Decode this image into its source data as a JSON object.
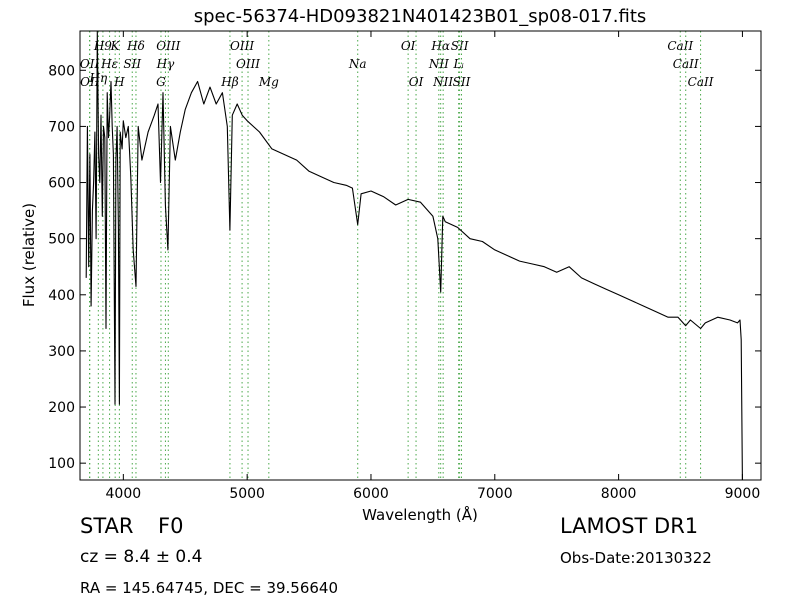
{
  "chart_data": {
    "type": "line",
    "title": "spec-56374-HD093821N401423B01_sp08-017.fits",
    "xlabel": "Wavelength (Å)",
    "ylabel": "Flux (relative)",
    "xlim": [
      3650,
      9150
    ],
    "ylim": [
      70,
      870
    ],
    "xticks": [
      4000,
      5000,
      6000,
      7000,
      8000,
      9000
    ],
    "yticks": [
      100,
      200,
      300,
      400,
      500,
      600,
      700,
      800
    ],
    "grid": false,
    "line_color": "#000000",
    "marker_color": "#4aa84a",
    "spectrum": {
      "x": [
        3700,
        3710,
        3720,
        3730,
        3740,
        3750,
        3760,
        3770,
        3780,
        3790,
        3800,
        3810,
        3820,
        3830,
        3840,
        3850,
        3860,
        3870,
        3880,
        3890,
        3900,
        3910,
        3920,
        3933,
        3940,
        3950,
        3960,
        3968,
        3975,
        3990,
        4000,
        4020,
        4040,
        4060,
        4080,
        4102,
        4120,
        4150,
        4200,
        4250,
        4280,
        4300,
        4320,
        4340,
        4360,
        4380,
        4420,
        4460,
        4500,
        4550,
        4600,
        4650,
        4700,
        4750,
        4800,
        4840,
        4861,
        4880,
        4920,
        4960,
        5000,
        5050,
        5100,
        5200,
        5300,
        5400,
        5500,
        5600,
        5700,
        5800,
        5850,
        5893,
        5920,
        6000,
        6100,
        6200,
        6300,
        6400,
        6500,
        6540,
        6563,
        6580,
        6600,
        6700,
        6800,
        6900,
        7000,
        7100,
        7200,
        7300,
        7400,
        7500,
        7600,
        7700,
        7800,
        7900,
        8000,
        8100,
        8200,
        8300,
        8400,
        8480,
        8542,
        8580,
        8662,
        8700,
        8800,
        8900,
        8960,
        8980,
        8990,
        9000
      ],
      "y": [
        430,
        700,
        450,
        650,
        380,
        550,
        600,
        690,
        500,
        870,
        650,
        600,
        720,
        540,
        700,
        680,
        340,
        760,
        680,
        720,
        780,
        700,
        650,
        205,
        640,
        700,
        520,
        205,
        690,
        660,
        710,
        680,
        700,
        610,
        480,
        415,
        700,
        640,
        690,
        720,
        740,
        600,
        760,
        560,
        480,
        700,
        640,
        690,
        730,
        760,
        780,
        740,
        770,
        740,
        760,
        700,
        515,
        720,
        740,
        720,
        710,
        700,
        690,
        660,
        650,
        640,
        620,
        610,
        600,
        595,
        590,
        525,
        580,
        585,
        575,
        560,
        570,
        565,
        540,
        500,
        405,
        540,
        530,
        520,
        500,
        495,
        480,
        470,
        460,
        455,
        450,
        440,
        450,
        430,
        420,
        410,
        400,
        390,
        380,
        370,
        360,
        360,
        345,
        355,
        340,
        350,
        360,
        355,
        350,
        355,
        320,
        70
      ]
    },
    "markers": [
      {
        "label": "H9",
        "x": 3835,
        "row": 1
      },
      {
        "label": "K",
        "x": 3934,
        "row": 1
      },
      {
        "label": "Hδ",
        "x": 4102,
        "row": 1
      },
      {
        "label": "OIII",
        "x": 4363,
        "row": 1
      },
      {
        "label": "OIII",
        "x": 4959,
        "row": 1
      },
      {
        "label": "OI",
        "x": 6300,
        "row": 1
      },
      {
        "label": "Hα",
        "x": 6563,
        "row": 1
      },
      {
        "label": "SII",
        "x": 6716,
        "row": 1
      },
      {
        "label": "CaII",
        "x": 8498,
        "row": 1
      },
      {
        "label": "OII",
        "x": 3727,
        "row": 2
      },
      {
        "label": "Hε",
        "x": 3889,
        "row": 2
      },
      {
        "label": "SII",
        "x": 4072,
        "row": 2
      },
      {
        "label": "Hγ",
        "x": 4340,
        "row": 2
      },
      {
        "label": "OIII",
        "x": 5007,
        "row": 2
      },
      {
        "label": "Na",
        "x": 5893,
        "row": 2
      },
      {
        "label": "NII",
        "x": 6548,
        "row": 2
      },
      {
        "label": "Lᵢ",
        "x": 6708,
        "row": 2
      },
      {
        "label": "CaII",
        "x": 8542,
        "row": 2
      },
      {
        "label": "Hη",
        "x": 3798,
        "row": 3
      },
      {
        "label": "OII",
        "x": 3729,
        "row": 4
      },
      {
        "label": "H",
        "x": 3968,
        "row": 4
      },
      {
        "label": "G",
        "x": 4304,
        "row": 4
      },
      {
        "label": "Hβ",
        "x": 4861,
        "row": 4
      },
      {
        "label": "Mg",
        "x": 5175,
        "row": 4
      },
      {
        "label": "OI",
        "x": 6364,
        "row": 4
      },
      {
        "label": "NII",
        "x": 6583,
        "row": 4
      },
      {
        "label": "SII",
        "x": 6731,
        "row": 4
      },
      {
        "label": "CaII",
        "x": 8662,
        "row": 4
      }
    ]
  },
  "info": {
    "object_type": "STAR",
    "subclass": "F0",
    "redshift": "cz = 8.4 ± 0.4",
    "coords": "RA = 145.64745, DEC = 39.56640",
    "survey": "LAMOST DR1",
    "obs_date": "Obs-Date:20130322"
  }
}
